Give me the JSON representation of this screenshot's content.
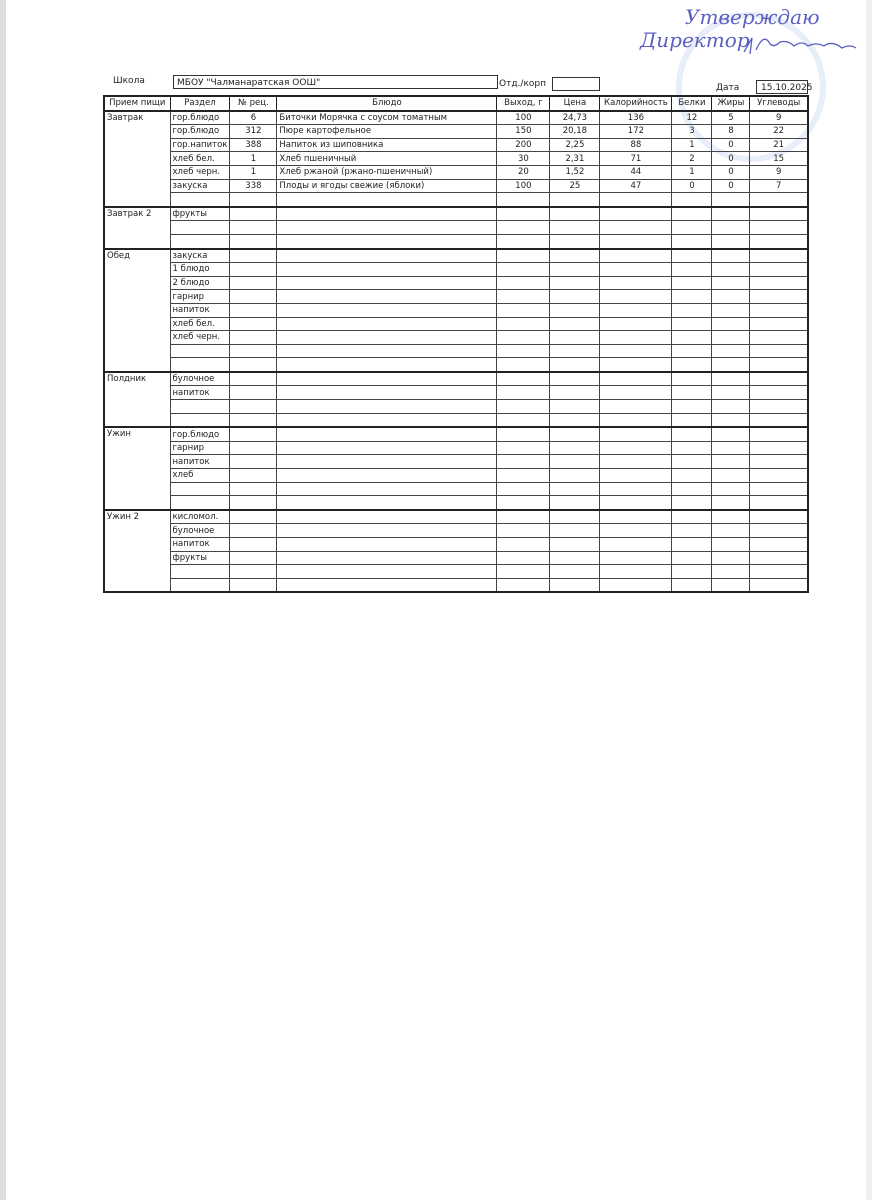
{
  "header": {
    "school_label": "Школа",
    "school_value": "МБОУ \"Чалманаратская ООШ\"",
    "dept_label": "Отд./корп",
    "dept_value": "",
    "date_label": "Дата",
    "date_value": "15.10.2025"
  },
  "signature": {
    "text": "Утверждаю Директор",
    "stamp_text": "МБОУ",
    "ink_color": "#5a5fc0"
  },
  "table": {
    "columns": [
      "Прием пищи",
      "Раздел",
      "№ рец.",
      "Блюдо",
      "Выход, г",
      "Цена",
      "Калорийность",
      "Белки",
      "Жиры",
      "Углеводы"
    ],
    "sections": [
      {
        "meal": "Завтрак",
        "rows": [
          [
            "гор.блюдо",
            "6",
            "Биточки Морячка с соусом томатным",
            "100",
            "24,73",
            "136",
            "12",
            "5",
            "9"
          ],
          [
            "гор.блюдо",
            "312",
            "Пюре картофельное",
            "150",
            "20,18",
            "172",
            "3",
            "8",
            "22"
          ],
          [
            "гор.напиток",
            "388",
            "Напиток из шиповника",
            "200",
            "2,25",
            "88",
            "1",
            "0",
            "21"
          ],
          [
            "хлеб бел.",
            "1",
            "Хлеб пшеничный",
            "30",
            "2,31",
            "71",
            "2",
            "0",
            "15"
          ],
          [
            "хлеб черн.",
            "1",
            "Хлеб ржаной (ржано-пшеничный)",
            "20",
            "1,52",
            "44",
            "1",
            "0",
            "9"
          ],
          [
            "закуска",
            "338",
            "Плоды и ягоды свежие (яблоки)",
            "100",
            "25",
            "47",
            "0",
            "0",
            "7"
          ],
          [
            "",
            "",
            "",
            "",
            "",
            "",
            "",
            "",
            ""
          ]
        ]
      },
      {
        "meal": "Завтрак 2",
        "rows": [
          [
            "фрукты",
            "",
            "",
            "",
            "",
            "",
            "",
            "",
            ""
          ],
          [
            "",
            "",
            "",
            "",
            "",
            "",
            "",
            "",
            ""
          ],
          [
            "",
            "",
            "",
            "",
            "",
            "",
            "",
            "",
            ""
          ]
        ]
      },
      {
        "meal": "Обед",
        "rows": [
          [
            "закуска",
            "",
            "",
            "",
            "",
            "",
            "",
            "",
            ""
          ],
          [
            "1 блюдо",
            "",
            "",
            "",
            "",
            "",
            "",
            "",
            ""
          ],
          [
            "2 блюдо",
            "",
            "",
            "",
            "",
            "",
            "",
            "",
            ""
          ],
          [
            "гарнир",
            "",
            "",
            "",
            "",
            "",
            "",
            "",
            ""
          ],
          [
            "напиток",
            "",
            "",
            "",
            "",
            "",
            "",
            "",
            ""
          ],
          [
            "хлеб бел.",
            "",
            "",
            "",
            "",
            "",
            "",
            "",
            ""
          ],
          [
            "хлеб черн.",
            "",
            "",
            "",
            "",
            "",
            "",
            "",
            ""
          ],
          [
            "",
            "",
            "",
            "",
            "",
            "",
            "",
            "",
            ""
          ],
          [
            "",
            "",
            "",
            "",
            "",
            "",
            "",
            "",
            ""
          ]
        ]
      },
      {
        "meal": "Полдник",
        "rows": [
          [
            "булочное",
            "",
            "",
            "",
            "",
            "",
            "",
            "",
            ""
          ],
          [
            "напиток",
            "",
            "",
            "",
            "",
            "",
            "",
            "",
            ""
          ],
          [
            "",
            "",
            "",
            "",
            "",
            "",
            "",
            "",
            ""
          ],
          [
            "",
            "",
            "",
            "",
            "",
            "",
            "",
            "",
            ""
          ]
        ]
      },
      {
        "meal": "Ужин",
        "rows": [
          [
            "гор.блюдо",
            "",
            "",
            "",
            "",
            "",
            "",
            "",
            ""
          ],
          [
            "гарнир",
            "",
            "",
            "",
            "",
            "",
            "",
            "",
            ""
          ],
          [
            "напиток",
            "",
            "",
            "",
            "",
            "",
            "",
            "",
            ""
          ],
          [
            "хлеб",
            "",
            "",
            "",
            "",
            "",
            "",
            "",
            ""
          ],
          [
            "",
            "",
            "",
            "",
            "",
            "",
            "",
            "",
            ""
          ],
          [
            "",
            "",
            "",
            "",
            "",
            "",
            "",
            "",
            ""
          ]
        ]
      },
      {
        "meal": "Ужин 2",
        "rows": [
          [
            "кисломол.",
            "",
            "",
            "",
            "",
            "",
            "",
            "",
            ""
          ],
          [
            "булочное",
            "",
            "",
            "",
            "",
            "",
            "",
            "",
            ""
          ],
          [
            "напиток",
            "",
            "",
            "",
            "",
            "",
            "",
            "",
            ""
          ],
          [
            "фрукты",
            "",
            "",
            "",
            "",
            "",
            "",
            "",
            ""
          ],
          [
            "",
            "",
            "",
            "",
            "",
            "",
            "",
            "",
            ""
          ],
          [
            "",
            "",
            "",
            "",
            "",
            "",
            "",
            "",
            ""
          ]
        ]
      }
    ]
  }
}
